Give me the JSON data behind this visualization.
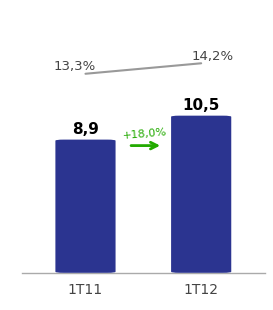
{
  "categories": [
    "1T11",
    "1T12"
  ],
  "values": [
    8.9,
    10.5
  ],
  "bar_color": "#2b3490",
  "bar_labels": [
    "8,9",
    "10,5"
  ],
  "pct_labels": [
    "13,3%",
    "14,2%"
  ],
  "arrow_label": "+18,0%",
  "arrow_color": "#22aa00",
  "line_color": "#999999",
  "background_color": "#ffffff",
  "ylim": [
    0,
    14.5
  ],
  "bar_width": 0.52,
  "x_positions": [
    0,
    1
  ]
}
